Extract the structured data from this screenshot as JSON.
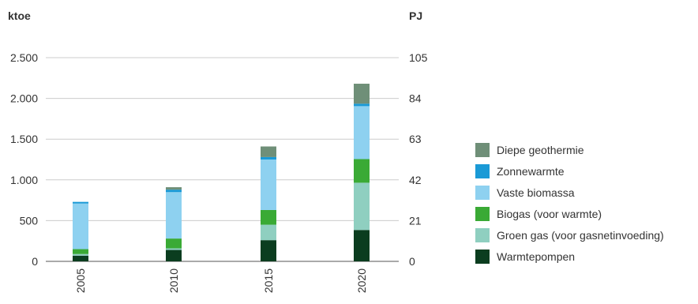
{
  "chart_data": {
    "type": "bar",
    "stacked": true,
    "left_unit": "ktoe",
    "right_unit": "PJ",
    "categories": [
      "2005",
      "2010",
      "2015",
      "2020"
    ],
    "ylim": [
      0,
      2500
    ],
    "yticks": [
      0,
      500,
      1000,
      1500,
      2000,
      2500
    ],
    "ytick_labels": [
      "0",
      "500",
      "1.000",
      "1.500",
      "2.000",
      "2.500"
    ],
    "right_ylim": [
      0,
      105
    ],
    "right_yticks": [
      0,
      21,
      42,
      63,
      84,
      105
    ],
    "grid": true,
    "legend_position": "right",
    "series": [
      {
        "name": "Warmtepompen",
        "color": "#0b3d1f",
        "values": [
          70,
          140,
          260,
          385
        ]
      },
      {
        "name": "Groen gas (voor gasnetinvoeding)",
        "color": "#8fcfc0",
        "values": [
          20,
          20,
          190,
          580
        ]
      },
      {
        "name": "Biogas (voor warmte)",
        "color": "#3aaa35",
        "values": [
          60,
          120,
          180,
          290
        ]
      },
      {
        "name": "Vaste biomassa",
        "color": "#8ed1f0",
        "values": [
          560,
          570,
          620,
          650
        ]
      },
      {
        "name": "Zonnewarmte",
        "color": "#1a9ad6",
        "values": [
          20,
          30,
          30,
          30
        ]
      },
      {
        "name": "Diepe geothermie",
        "color": "#6f8f78",
        "values": [
          0,
          30,
          130,
          245
        ]
      }
    ]
  }
}
